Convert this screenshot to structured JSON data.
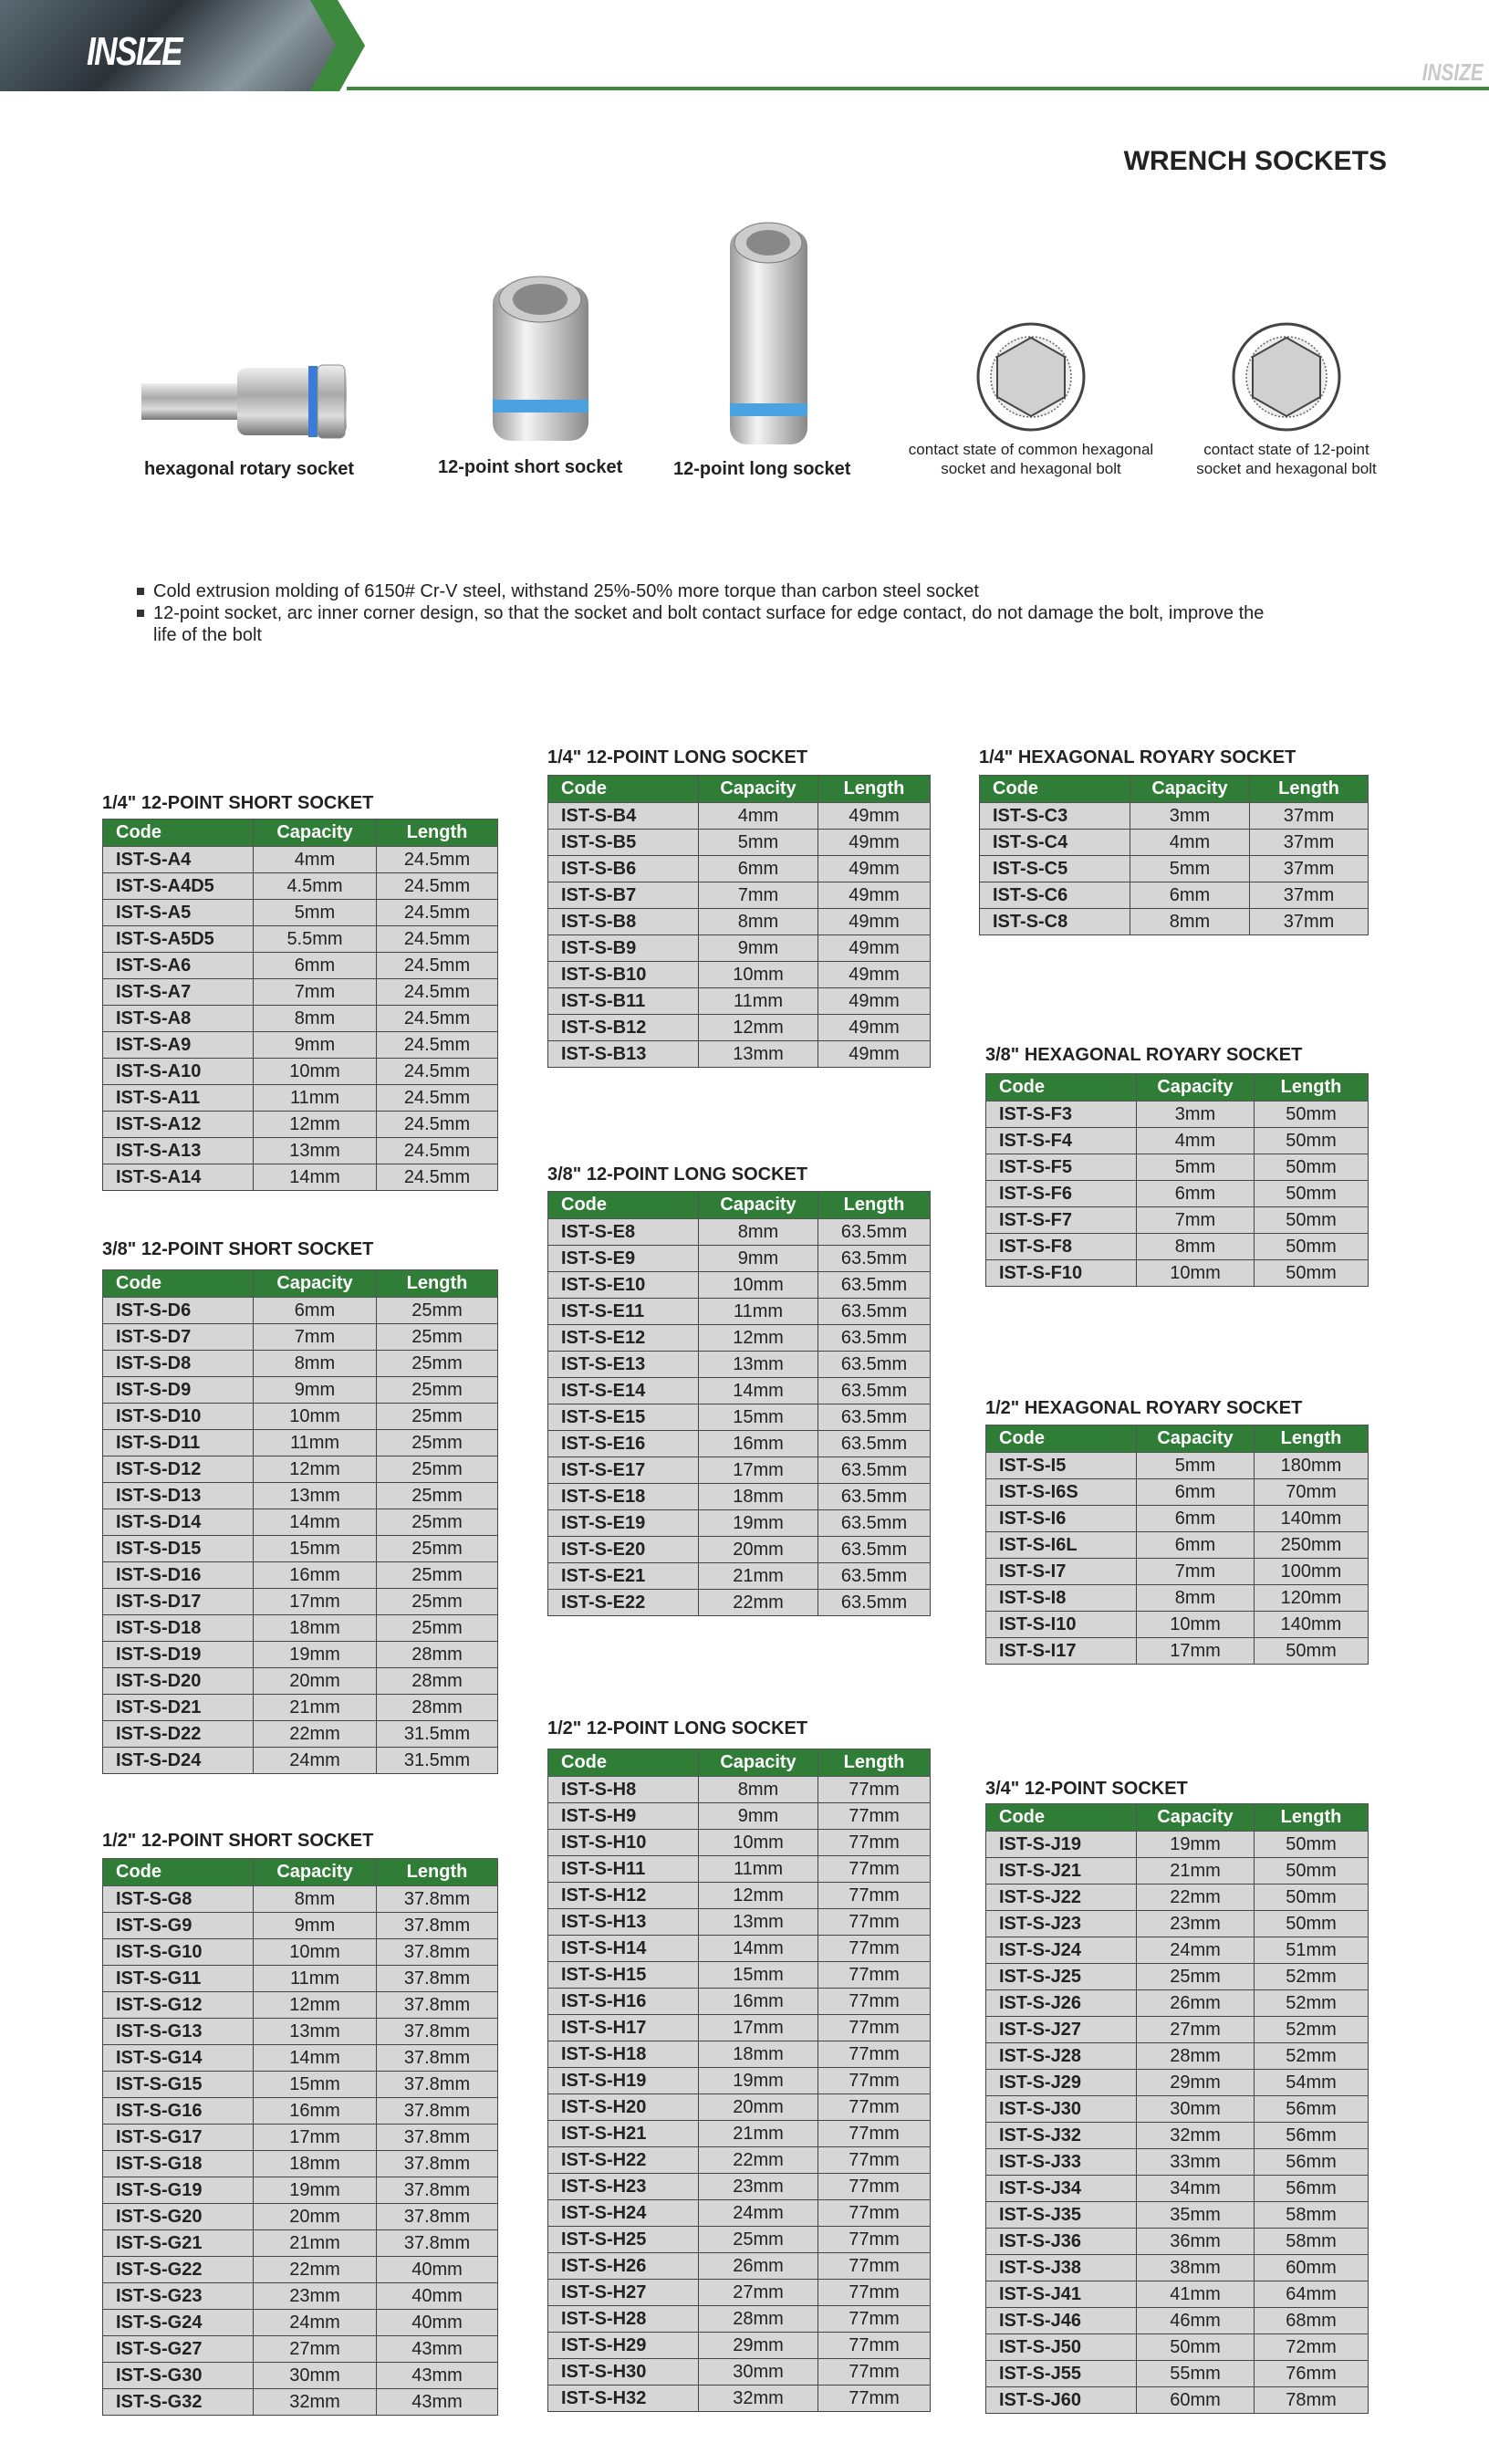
{
  "header": {
    "logo": "INSIZE",
    "logo_small": "INSIZE",
    "accent": "#3d8a3f"
  },
  "page_title": "WRENCH SOCKETS",
  "products": [
    {
      "label": "hexagonal rotary socket",
      "icon": "hex-rotary-socket-image"
    },
    {
      "label": "12-point short socket",
      "icon": "short-socket-image"
    },
    {
      "label": "12-point long socket",
      "icon": "long-socket-image"
    },
    {
      "label": "contact state of common hexagonal socket and hexagonal bolt",
      "icon": "hex-contact-diagram"
    },
    {
      "label": "contact state of 12-point socket and hexagonal bolt",
      "icon": "12-point-contact-diagram"
    }
  ],
  "bullets": [
    "Cold extrusion molding of 6150# Cr-V steel, withstand 25%-50% more torque than carbon steel socket",
    "12-point socket, arc inner corner design, so that the socket and bolt contact surface for edge contact, do not damage the bolt, improve the life of the bolt"
  ],
  "columns": [
    "Code",
    "Capacity",
    "Length"
  ],
  "tables": [
    {
      "title": "1/4\" 12-POINT SHORT SOCKET",
      "rows": [
        [
          "IST-S-A4",
          "4mm",
          "24.5mm"
        ],
        [
          "IST-S-A4D5",
          "4.5mm",
          "24.5mm"
        ],
        [
          "IST-S-A5",
          "5mm",
          "24.5mm"
        ],
        [
          "IST-S-A5D5",
          "5.5mm",
          "24.5mm"
        ],
        [
          "IST-S-A6",
          "6mm",
          "24.5mm"
        ],
        [
          "IST-S-A7",
          "7mm",
          "24.5mm"
        ],
        [
          "IST-S-A8",
          "8mm",
          "24.5mm"
        ],
        [
          "IST-S-A9",
          "9mm",
          "24.5mm"
        ],
        [
          "IST-S-A10",
          "10mm",
          "24.5mm"
        ],
        [
          "IST-S-A11",
          "11mm",
          "24.5mm"
        ],
        [
          "IST-S-A12",
          "12mm",
          "24.5mm"
        ],
        [
          "IST-S-A13",
          "13mm",
          "24.5mm"
        ],
        [
          "IST-S-A14",
          "14mm",
          "24.5mm"
        ]
      ]
    },
    {
      "title": "3/8\" 12-POINT SHORT SOCKET",
      "rows": [
        [
          "IST-S-D6",
          "6mm",
          "25mm"
        ],
        [
          "IST-S-D7",
          "7mm",
          "25mm"
        ],
        [
          "IST-S-D8",
          "8mm",
          "25mm"
        ],
        [
          "IST-S-D9",
          "9mm",
          "25mm"
        ],
        [
          "IST-S-D10",
          "10mm",
          "25mm"
        ],
        [
          "IST-S-D11",
          "11mm",
          "25mm"
        ],
        [
          "IST-S-D12",
          "12mm",
          "25mm"
        ],
        [
          "IST-S-D13",
          "13mm",
          "25mm"
        ],
        [
          "IST-S-D14",
          "14mm",
          "25mm"
        ],
        [
          "IST-S-D15",
          "15mm",
          "25mm"
        ],
        [
          "IST-S-D16",
          "16mm",
          "25mm"
        ],
        [
          "IST-S-D17",
          "17mm",
          "25mm"
        ],
        [
          "IST-S-D18",
          "18mm",
          "25mm"
        ],
        [
          "IST-S-D19",
          "19mm",
          "28mm"
        ],
        [
          "IST-S-D20",
          "20mm",
          "28mm"
        ],
        [
          "IST-S-D21",
          "21mm",
          "28mm"
        ],
        [
          "IST-S-D22",
          "22mm",
          "31.5mm"
        ],
        [
          "IST-S-D24",
          "24mm",
          "31.5mm"
        ]
      ]
    },
    {
      "title": "1/2\" 12-POINT SHORT SOCKET",
      "rows": [
        [
          "IST-S-G8",
          "8mm",
          "37.8mm"
        ],
        [
          "IST-S-G9",
          "9mm",
          "37.8mm"
        ],
        [
          "IST-S-G10",
          "10mm",
          "37.8mm"
        ],
        [
          "IST-S-G11",
          "11mm",
          "37.8mm"
        ],
        [
          "IST-S-G12",
          "12mm",
          "37.8mm"
        ],
        [
          "IST-S-G13",
          "13mm",
          "37.8mm"
        ],
        [
          "IST-S-G14",
          "14mm",
          "37.8mm"
        ],
        [
          "IST-S-G15",
          "15mm",
          "37.8mm"
        ],
        [
          "IST-S-G16",
          "16mm",
          "37.8mm"
        ],
        [
          "IST-S-G17",
          "17mm",
          "37.8mm"
        ],
        [
          "IST-S-G18",
          "18mm",
          "37.8mm"
        ],
        [
          "IST-S-G19",
          "19mm",
          "37.8mm"
        ],
        [
          "IST-S-G20",
          "20mm",
          "37.8mm"
        ],
        [
          "IST-S-G21",
          "21mm",
          "37.8mm"
        ],
        [
          "IST-S-G22",
          "22mm",
          "40mm"
        ],
        [
          "IST-S-G23",
          "23mm",
          "40mm"
        ],
        [
          "IST-S-G24",
          "24mm",
          "40mm"
        ],
        [
          "IST-S-G27",
          "27mm",
          "43mm"
        ],
        [
          "IST-S-G30",
          "30mm",
          "43mm"
        ],
        [
          "IST-S-G32",
          "32mm",
          "43mm"
        ]
      ]
    },
    {
      "title": "1/4\" 12-POINT LONG SOCKET",
      "rows": [
        [
          "IST-S-B4",
          "4mm",
          "49mm"
        ],
        [
          "IST-S-B5",
          "5mm",
          "49mm"
        ],
        [
          "IST-S-B6",
          "6mm",
          "49mm"
        ],
        [
          "IST-S-B7",
          "7mm",
          "49mm"
        ],
        [
          "IST-S-B8",
          "8mm",
          "49mm"
        ],
        [
          "IST-S-B9",
          "9mm",
          "49mm"
        ],
        [
          "IST-S-B10",
          "10mm",
          "49mm"
        ],
        [
          "IST-S-B11",
          "11mm",
          "49mm"
        ],
        [
          "IST-S-B12",
          "12mm",
          "49mm"
        ],
        [
          "IST-S-B13",
          "13mm",
          "49mm"
        ]
      ]
    },
    {
      "title": "3/8\" 12-POINT LONG SOCKET",
      "rows": [
        [
          "IST-S-E8",
          "8mm",
          "63.5mm"
        ],
        [
          "IST-S-E9",
          "9mm",
          "63.5mm"
        ],
        [
          "IST-S-E10",
          "10mm",
          "63.5mm"
        ],
        [
          "IST-S-E11",
          "11mm",
          "63.5mm"
        ],
        [
          "IST-S-E12",
          "12mm",
          "63.5mm"
        ],
        [
          "IST-S-E13",
          "13mm",
          "63.5mm"
        ],
        [
          "IST-S-E14",
          "14mm",
          "63.5mm"
        ],
        [
          "IST-S-E15",
          "15mm",
          "63.5mm"
        ],
        [
          "IST-S-E16",
          "16mm",
          "63.5mm"
        ],
        [
          "IST-S-E17",
          "17mm",
          "63.5mm"
        ],
        [
          "IST-S-E18",
          "18mm",
          "63.5mm"
        ],
        [
          "IST-S-E19",
          "19mm",
          "63.5mm"
        ],
        [
          "IST-S-E20",
          "20mm",
          "63.5mm"
        ],
        [
          "IST-S-E21",
          "21mm",
          "63.5mm"
        ],
        [
          "IST-S-E22",
          "22mm",
          "63.5mm"
        ]
      ]
    },
    {
      "title": "1/2\" 12-POINT LONG SOCKET",
      "rows": [
        [
          "IST-S-H8",
          "8mm",
          "77mm"
        ],
        [
          "IST-S-H9",
          "9mm",
          "77mm"
        ],
        [
          "IST-S-H10",
          "10mm",
          "77mm"
        ],
        [
          "IST-S-H11",
          "11mm",
          "77mm"
        ],
        [
          "IST-S-H12",
          "12mm",
          "77mm"
        ],
        [
          "IST-S-H13",
          "13mm",
          "77mm"
        ],
        [
          "IST-S-H14",
          "14mm",
          "77mm"
        ],
        [
          "IST-S-H15",
          "15mm",
          "77mm"
        ],
        [
          "IST-S-H16",
          "16mm",
          "77mm"
        ],
        [
          "IST-S-H17",
          "17mm",
          "77mm"
        ],
        [
          "IST-S-H18",
          "18mm",
          "77mm"
        ],
        [
          "IST-S-H19",
          "19mm",
          "77mm"
        ],
        [
          "IST-S-H20",
          "20mm",
          "77mm"
        ],
        [
          "IST-S-H21",
          "21mm",
          "77mm"
        ],
        [
          "IST-S-H22",
          "22mm",
          "77mm"
        ],
        [
          "IST-S-H23",
          "23mm",
          "77mm"
        ],
        [
          "IST-S-H24",
          "24mm",
          "77mm"
        ],
        [
          "IST-S-H25",
          "25mm",
          "77mm"
        ],
        [
          "IST-S-H26",
          "26mm",
          "77mm"
        ],
        [
          "IST-S-H27",
          "27mm",
          "77mm"
        ],
        [
          "IST-S-H28",
          "28mm",
          "77mm"
        ],
        [
          "IST-S-H29",
          "29mm",
          "77mm"
        ],
        [
          "IST-S-H30",
          "30mm",
          "77mm"
        ],
        [
          "IST-S-H32",
          "32mm",
          "77mm"
        ]
      ]
    },
    {
      "title": "1/4\" HEXAGONAL ROYARY SOCKET",
      "rows": [
        [
          "IST-S-C3",
          "3mm",
          "37mm"
        ],
        [
          "IST-S-C4",
          "4mm",
          "37mm"
        ],
        [
          "IST-S-C5",
          "5mm",
          "37mm"
        ],
        [
          "IST-S-C6",
          "6mm",
          "37mm"
        ],
        [
          "IST-S-C8",
          "8mm",
          "37mm"
        ]
      ]
    },
    {
      "title": "3/8\" HEXAGONAL ROYARY SOCKET",
      "rows": [
        [
          "IST-S-F3",
          "3mm",
          "50mm"
        ],
        [
          "IST-S-F4",
          "4mm",
          "50mm"
        ],
        [
          "IST-S-F5",
          "5mm",
          "50mm"
        ],
        [
          "IST-S-F6",
          "6mm",
          "50mm"
        ],
        [
          "IST-S-F7",
          "7mm",
          "50mm"
        ],
        [
          "IST-S-F8",
          "8mm",
          "50mm"
        ],
        [
          "IST-S-F10",
          "10mm",
          "50mm"
        ]
      ]
    },
    {
      "title": "1/2\" HEXAGONAL ROYARY SOCKET",
      "rows": [
        [
          "IST-S-I5",
          "5mm",
          "180mm"
        ],
        [
          "IST-S-I6S",
          "6mm",
          "70mm"
        ],
        [
          "IST-S-I6",
          "6mm",
          "140mm"
        ],
        [
          "IST-S-I6L",
          "6mm",
          "250mm"
        ],
        [
          "IST-S-I7",
          "7mm",
          "100mm"
        ],
        [
          "IST-S-I8",
          "8mm",
          "120mm"
        ],
        [
          "IST-S-I10",
          "10mm",
          "140mm"
        ],
        [
          "IST-S-I17",
          "17mm",
          "50mm"
        ]
      ]
    },
    {
      "title": "3/4\" 12-POINT SOCKET",
      "rows": [
        [
          "IST-S-J19",
          "19mm",
          "50mm"
        ],
        [
          "IST-S-J21",
          "21mm",
          "50mm"
        ],
        [
          "IST-S-J22",
          "22mm",
          "50mm"
        ],
        [
          "IST-S-J23",
          "23mm",
          "50mm"
        ],
        [
          "IST-S-J24",
          "24mm",
          "51mm"
        ],
        [
          "IST-S-J25",
          "25mm",
          "52mm"
        ],
        [
          "IST-S-J26",
          "26mm",
          "52mm"
        ],
        [
          "IST-S-J27",
          "27mm",
          "52mm"
        ],
        [
          "IST-S-J28",
          "28mm",
          "52mm"
        ],
        [
          "IST-S-J29",
          "29mm",
          "54mm"
        ],
        [
          "IST-S-J30",
          "30mm",
          "56mm"
        ],
        [
          "IST-S-J32",
          "32mm",
          "56mm"
        ],
        [
          "IST-S-J33",
          "33mm",
          "56mm"
        ],
        [
          "IST-S-J34",
          "34mm",
          "56mm"
        ],
        [
          "IST-S-J35",
          "35mm",
          "58mm"
        ],
        [
          "IST-S-J36",
          "36mm",
          "58mm"
        ],
        [
          "IST-S-J38",
          "38mm",
          "60mm"
        ],
        [
          "IST-S-J41",
          "41mm",
          "64mm"
        ],
        [
          "IST-S-J46",
          "46mm",
          "68mm"
        ],
        [
          "IST-S-J50",
          "50mm",
          "72mm"
        ],
        [
          "IST-S-J55",
          "55mm",
          "76mm"
        ],
        [
          "IST-S-J60",
          "60mm",
          "78mm"
        ]
      ]
    }
  ]
}
